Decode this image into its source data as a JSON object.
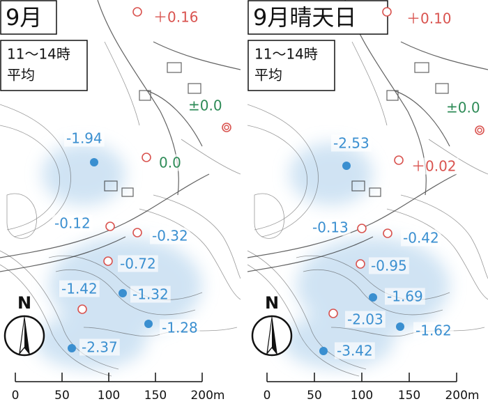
{
  "panels": [
    {
      "title": "9月",
      "subtitle": [
        "11〜14時",
        "平均"
      ],
      "north": "N",
      "scale": [
        "0",
        "50",
        "100",
        "150",
        "200m"
      ],
      "points": [
        {
          "label": "＋0.16",
          "color": "#d9534f",
          "marker": "circle"
        },
        {
          "label": "±0.0",
          "color": "#2e8b57",
          "marker": "double"
        },
        {
          "label": "0.0",
          "color": "#2e8b57",
          "marker": "circle"
        },
        {
          "label": "-1.94",
          "color": "#3a8fd0",
          "marker": "dot"
        },
        {
          "label": "-0.12",
          "color": "#3a8fd0",
          "marker": "circle"
        },
        {
          "label": "-0.32",
          "color": "#3a8fd0",
          "marker": "circle"
        },
        {
          "label": "-0.72",
          "color": "#3a8fd0",
          "marker": "circle"
        },
        {
          "label": "-1.42",
          "color": "#3a8fd0",
          "marker": "circle"
        },
        {
          "label": "-1.32",
          "color": "#3a8fd0",
          "marker": "dot"
        },
        {
          "label": "-1.28",
          "color": "#3a8fd0",
          "marker": "dot"
        },
        {
          "label": "-2.37",
          "color": "#3a8fd0",
          "marker": "dot"
        }
      ]
    },
    {
      "title": "9月晴天日",
      "subtitle": [
        "11〜14時",
        "平均"
      ],
      "north": "N",
      "scale": [
        "0",
        "50",
        "100",
        "150",
        "200m"
      ],
      "points": [
        {
          "label": "＋0.10",
          "color": "#d9534f",
          "marker": "circle"
        },
        {
          "label": "±0.0",
          "color": "#2e8b57",
          "marker": "double"
        },
        {
          "label": "＋0.02",
          "color": "#d9534f",
          "marker": "circle"
        },
        {
          "label": "-2.53",
          "color": "#3a8fd0",
          "marker": "dot"
        },
        {
          "label": "-0.13",
          "color": "#3a8fd0",
          "marker": "circle"
        },
        {
          "label": "-0.42",
          "color": "#3a8fd0",
          "marker": "circle"
        },
        {
          "label": "-0.95",
          "color": "#3a8fd0",
          "marker": "circle"
        },
        {
          "label": "-1.69",
          "color": "#3a8fd0",
          "marker": "dot"
        },
        {
          "label": "-2.03",
          "color": "#3a8fd0",
          "marker": "circle"
        },
        {
          "label": "-1.62",
          "color": "#3a8fd0",
          "marker": "dot"
        },
        {
          "label": "-3.42",
          "color": "#3a8fd0",
          "marker": "dot"
        }
      ]
    }
  ]
}
